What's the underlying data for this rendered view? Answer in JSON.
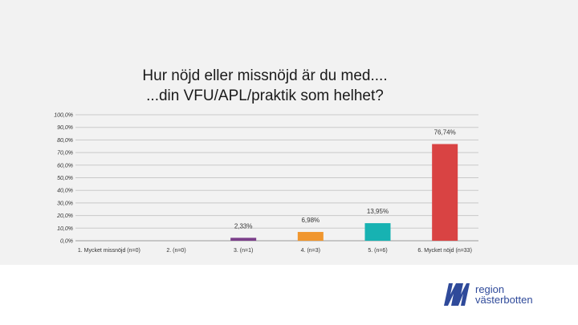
{
  "title_line1": "Hur nöjd eller missnöjd är du med....",
  "title_line2": "...din VFU/APL/praktik som helhet?",
  "logo": {
    "line1": "region",
    "line2": "västerbotten",
    "icon": "region-vasterbotten-logo",
    "color": "#2f4a9a"
  },
  "chart_data": {
    "type": "bar",
    "title": "Hur nöjd eller missnöjd är du med.... ...din VFU/APL/praktik som helhet?",
    "xlabel": "",
    "ylabel": "",
    "ylim": [
      0,
      100
    ],
    "yticks": [
      "0,0%",
      "10,0%",
      "20,0%",
      "30,0%",
      "40,0%",
      "50,0%",
      "60,0%",
      "70,0%",
      "80,0%",
      "90,0%",
      "100,0%"
    ],
    "ytick_values": [
      0,
      10,
      20,
      30,
      40,
      50,
      60,
      70,
      80,
      90,
      100
    ],
    "categories": [
      "1. Mycket missnöjd (n=0)",
      "2. (n=0)",
      "3. (n=1)",
      "4. (n=3)",
      "5. (n=6)",
      "6. Mycket nöjd (n=33)"
    ],
    "values": [
      0,
      0,
      2.33,
      6.98,
      13.95,
      76.74
    ],
    "data_labels": [
      "",
      "",
      "2,33%",
      "6,98%",
      "13,95%",
      "76,74%"
    ],
    "colors": [
      "#7f7f7f",
      "#7f7f7f",
      "#7b3f8a",
      "#f0962e",
      "#17b2b2",
      "#d94343"
    ],
    "grid": true
  }
}
